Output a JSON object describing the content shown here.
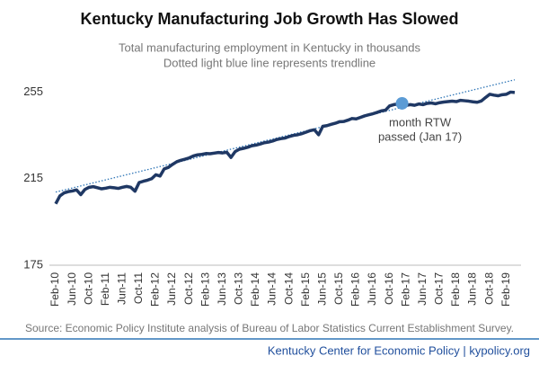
{
  "chart_data": {
    "type": "line",
    "title": "Kentucky Manufacturing Job Growth Has Slowed",
    "subtitle": [
      "Total manufacturing employment in Kentucky in thousands",
      "Dotted light blue line represents trendline"
    ],
    "categories": [
      "Feb-10",
      null,
      null,
      null,
      "Jun-10",
      null,
      null,
      null,
      "Oct-10",
      null,
      null,
      null,
      "Feb-11",
      null,
      null,
      null,
      "Jun-11",
      null,
      null,
      null,
      "Oct-11",
      null,
      null,
      null,
      "Feb-12",
      null,
      null,
      null,
      "Jun-12",
      null,
      null,
      null,
      "Oct-12",
      null,
      null,
      null,
      "Feb-13",
      null,
      null,
      null,
      "Jun-13",
      null,
      null,
      null,
      "Oct-13",
      null,
      null,
      null,
      "Feb-14",
      null,
      null,
      null,
      "Jun-14",
      null,
      null,
      null,
      "Oct-14",
      null,
      null,
      null,
      "Feb-15",
      null,
      null,
      null,
      "Jun-15",
      null,
      null,
      null,
      "Oct-15",
      null,
      null,
      null,
      "Feb-16",
      null,
      null,
      null,
      "Jun-16",
      null,
      null,
      null,
      "Oct-16",
      null,
      null,
      null,
      "Feb-17",
      null,
      null,
      null,
      "Jun-17",
      null,
      null,
      null,
      "Oct-17",
      null,
      null,
      null,
      "Feb-18",
      null,
      null,
      null,
      "Jun-18",
      null,
      null,
      null,
      "Oct-18",
      null,
      null,
      null,
      "Feb-19",
      null,
      null
    ],
    "series": [
      {
        "color": "#1f3864",
        "values": [
          203.4,
          207,
          208.4,
          209,
          209.3,
          209.8,
          207.6,
          210,
          211,
          211.3,
          210.8,
          210.3,
          210.6,
          211,
          210.8,
          210.5,
          211,
          211.4,
          211,
          209.2,
          213.2,
          213.8,
          214.3,
          215,
          216.8,
          216.2,
          219.5,
          220.2,
          221.6,
          222.8,
          223.5,
          224,
          224.6,
          225.5,
          226,
          226.2,
          226.6,
          226.5,
          226.8,
          227.1,
          226.9,
          227.2,
          224.8,
          227.5,
          228.6,
          229,
          229.5,
          230.2,
          230.5,
          231,
          231.6,
          231.9,
          232.4,
          233.1,
          233.5,
          233.8,
          234.5,
          235,
          235.3,
          235.8,
          236.5,
          237.2,
          237.6,
          235.3,
          239.2,
          239.5,
          240.1,
          240.6,
          241.3,
          241.4,
          242,
          242.8,
          242.6,
          243.3,
          244,
          244.5,
          245,
          245.6,
          246.3,
          246.6,
          248.6,
          249.2,
          249.5,
          249.8,
          248.9,
          249.2,
          248.9,
          249.5,
          249.2,
          249.8,
          250,
          249.6,
          250.1,
          250.4,
          250.6,
          250.8,
          250.6,
          251.2,
          251,
          250.8,
          250.5,
          250.3,
          250.9,
          252.5,
          254,
          253.6,
          253.3,
          253.8,
          254,
          255,
          254.8
        ]
      }
    ],
    "trendline": {
      "color": "#2e75b6",
      "values": [
        208.8,
        260.7
      ]
    },
    "annotation": {
      "index": 83,
      "color": "#5b9bd5",
      "lines": [
        "month RTW",
        "passed (Jan 17)"
      ]
    },
    "ylim": [
      175,
      261
    ],
    "yticks": [
      175,
      215,
      255
    ],
    "source": "Source: Economic Policy Institute analysis of Bureau of Labor Statistics Current Establishment Survey.",
    "footer": "Kentucky Center for Economic Policy | kypolicy.org"
  }
}
